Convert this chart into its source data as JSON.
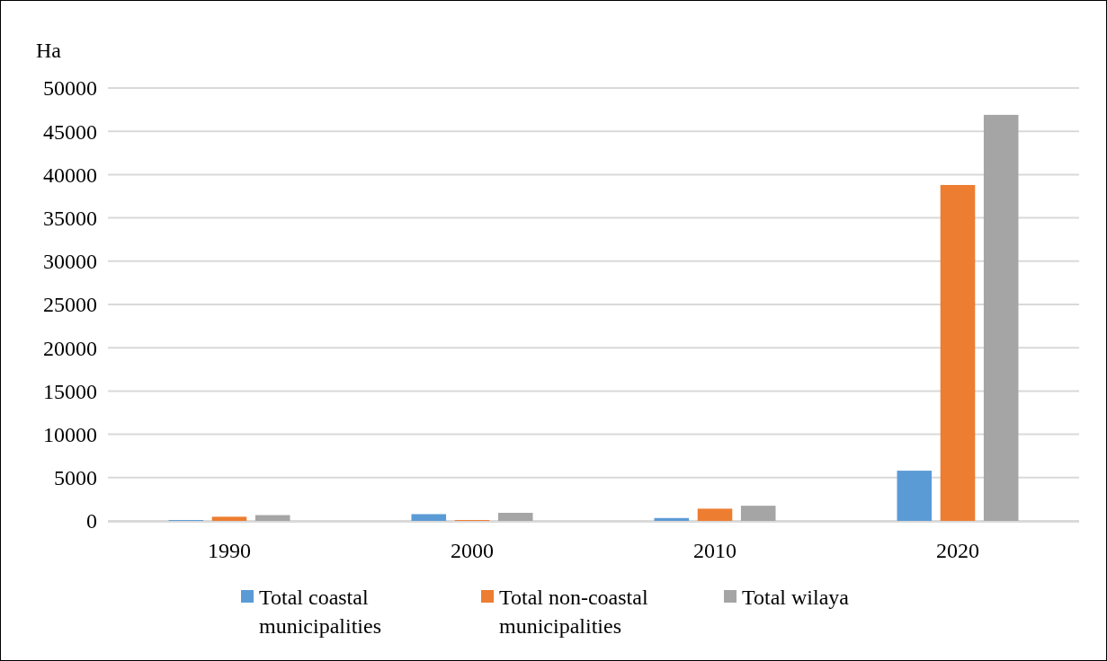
{
  "chart_data": {
    "type": "bar",
    "ylabel": "Ha",
    "categories": [
      "1990",
      "2000",
      "2010",
      "2020"
    ],
    "series": [
      {
        "name": "Total coastal municipalities",
        "color": "#5b9bd5",
        "values": [
          100,
          780,
          330,
          5800
        ]
      },
      {
        "name": "Total non-coastal municipalities",
        "color": "#ed7d31",
        "values": [
          480,
          100,
          1410,
          38800
        ]
      },
      {
        "name": "Total wilaya",
        "color": "#a5a5a5",
        "values": [
          670,
          930,
          1750,
          46900
        ]
      }
    ],
    "ylim": [
      0,
      50000
    ],
    "yticks": [
      0,
      5000,
      10000,
      15000,
      20000,
      25000,
      30000,
      35000,
      40000,
      45000,
      50000
    ],
    "grid": "y",
    "legend": "bottom"
  }
}
